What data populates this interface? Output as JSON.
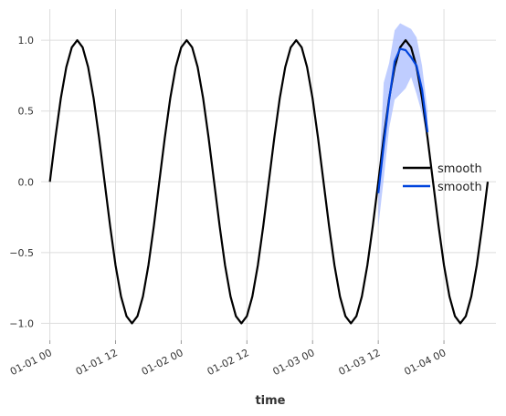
{
  "chart_data": {
    "type": "line",
    "title": "",
    "xlabel": "time",
    "ylabel": "",
    "x_ticks": [
      {
        "label": "01-01 00",
        "hour": 0
      },
      {
        "label": "01-01 12",
        "hour": 12
      },
      {
        "label": "01-02 00",
        "hour": 24
      },
      {
        "label": "01-02 12",
        "hour": 36
      },
      {
        "label": "01-03 00",
        "hour": 48
      },
      {
        "label": "01-03 12",
        "hour": 60
      },
      {
        "label": "01-04 00",
        "hour": 72
      }
    ],
    "y_ticks": [
      {
        "label": "1.0",
        "value": 1.0
      },
      {
        "label": "0.5",
        "value": 0.5
      },
      {
        "label": "0.0",
        "value": 0.0
      },
      {
        "label": "−0.5",
        "value": -0.5
      },
      {
        "label": "−1.0",
        "value": -1.0
      }
    ],
    "xlim_hours": [
      -1.6,
      81.5
    ],
    "ylim": [
      -1.12,
      1.22
    ],
    "grid": true,
    "legend": {
      "position": "right",
      "entries": [
        {
          "name": "smooth",
          "color": "#000000"
        },
        {
          "name": "smooth",
          "color": "#0044dd"
        }
      ]
    },
    "series": [
      {
        "name": "smooth",
        "color": "#000000",
        "x_hours": [
          0,
          1,
          2,
          3,
          4,
          5,
          6,
          7,
          8,
          9,
          10,
          11,
          12,
          13,
          14,
          15,
          16,
          17,
          18,
          19,
          20,
          21,
          22,
          23,
          24,
          25,
          26,
          27,
          28,
          29,
          30,
          31,
          32,
          33,
          34,
          35,
          36,
          37,
          38,
          39,
          40,
          41,
          42,
          43,
          44,
          45,
          46,
          47,
          48,
          49,
          50,
          51,
          52,
          53,
          54,
          55,
          56,
          57,
          58,
          59,
          60,
          61,
          62,
          63,
          64,
          65,
          66,
          67,
          68,
          69,
          70,
          71,
          72,
          73,
          74,
          75,
          76,
          77,
          78,
          79,
          80
        ],
        "values": [
          0.0,
          0.31,
          0.59,
          0.81,
          0.95,
          1.0,
          0.95,
          0.81,
          0.59,
          0.31,
          0.0,
          -0.31,
          -0.59,
          -0.81,
          -0.95,
          -1.0,
          -0.95,
          -0.81,
          -0.59,
          -0.31,
          0.0,
          0.31,
          0.59,
          0.81,
          0.95,
          1.0,
          0.95,
          0.81,
          0.59,
          0.31,
          0.0,
          -0.31,
          -0.59,
          -0.81,
          -0.95,
          -1.0,
          -0.95,
          -0.81,
          -0.59,
          -0.31,
          0.0,
          0.31,
          0.59,
          0.81,
          0.95,
          1.0,
          0.95,
          0.81,
          0.59,
          0.31,
          0.0,
          -0.31,
          -0.59,
          -0.81,
          -0.95,
          -1.0,
          -0.95,
          -0.81,
          -0.59,
          -0.31,
          0.0,
          0.31,
          0.59,
          0.81,
          0.95,
          1.0,
          0.95,
          0.81,
          0.59,
          0.31,
          0.0,
          -0.31,
          -0.59,
          -0.81,
          -0.95,
          -1.0,
          -0.95,
          -0.81,
          -0.59,
          -0.31,
          0.0
        ]
      },
      {
        "name": "smooth",
        "color": "#0044dd",
        "x_hours": [
          60,
          61,
          62,
          63,
          64,
          65,
          66,
          67,
          68,
          69
        ],
        "values": [
          -0.08,
          0.26,
          0.58,
          0.85,
          0.94,
          0.93,
          0.88,
          0.82,
          0.65,
          0.35
        ],
        "band_low": [
          -0.32,
          0.02,
          0.38,
          0.58,
          0.62,
          0.66,
          0.74,
          0.62,
          0.48,
          0.3
        ],
        "band_high": [
          -0.05,
          0.7,
          0.84,
          1.07,
          1.12,
          1.1,
          1.08,
          1.02,
          0.82,
          0.5
        ],
        "band_color": "#a9bcff"
      }
    ]
  }
}
